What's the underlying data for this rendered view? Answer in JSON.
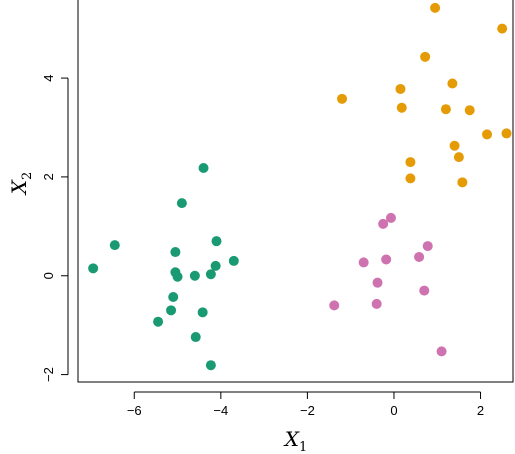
{
  "chart_data": {
    "type": "scatter",
    "title": "",
    "xlabel": {
      "base": "X",
      "subscript": "1"
    },
    "ylabel": {
      "base": "X",
      "subscript": "2"
    },
    "xlim": [
      -7.3,
      2.75
    ],
    "ylim": [
      -2.15,
      5.6
    ],
    "x_ticks": [
      -6,
      -4,
      -2,
      0,
      2
    ],
    "x_tick_labels": [
      "−6",
      "−4",
      "−2",
      "0",
      "2"
    ],
    "y_ticks": [
      -2,
      0,
      2,
      4
    ],
    "y_tick_labels": [
      "−2",
      "0",
      "2",
      "4"
    ],
    "grid": false,
    "legend": "none",
    "series": [
      {
        "color": "#1a9a72",
        "points": [
          {
            "x": -6.95,
            "y": 0.15
          },
          {
            "x": -6.45,
            "y": 0.62
          },
          {
            "x": -5.45,
            "y": -0.93
          },
          {
            "x": -5.15,
            "y": -0.7
          },
          {
            "x": -5.1,
            "y": -0.43
          },
          {
            "x": -5.05,
            "y": 0.48
          },
          {
            "x": -5.05,
            "y": 0.07
          },
          {
            "x": -5.0,
            "y": -0.02
          },
          {
            "x": -4.9,
            "y": 1.47
          },
          {
            "x": -4.6,
            "y": 0.0
          },
          {
            "x": -4.58,
            "y": -1.24
          },
          {
            "x": -4.42,
            "y": -0.74
          },
          {
            "x": -4.4,
            "y": 2.18
          },
          {
            "x": -4.23,
            "y": 0.03
          },
          {
            "x": -4.23,
            "y": -1.81
          },
          {
            "x": -4.12,
            "y": 0.2
          },
          {
            "x": -4.1,
            "y": 0.7
          },
          {
            "x": -3.7,
            "y": 0.3
          }
        ]
      },
      {
        "color": "#e59b05",
        "points": [
          {
            "x": -1.2,
            "y": 3.58
          },
          {
            "x": 0.15,
            "y": 3.78
          },
          {
            "x": 0.18,
            "y": 3.4
          },
          {
            "x": 0.38,
            "y": 2.3
          },
          {
            "x": 0.38,
            "y": 1.97
          },
          {
            "x": 0.72,
            "y": 4.43
          },
          {
            "x": 0.95,
            "y": 5.42
          },
          {
            "x": 1.2,
            "y": 3.37
          },
          {
            "x": 1.35,
            "y": 3.89
          },
          {
            "x": 1.4,
            "y": 2.63
          },
          {
            "x": 1.5,
            "y": 2.4
          },
          {
            "x": 1.58,
            "y": 1.89
          },
          {
            "x": 1.75,
            "y": 3.35
          },
          {
            "x": 2.15,
            "y": 2.86
          },
          {
            "x": 2.5,
            "y": 5.0
          },
          {
            "x": 2.6,
            "y": 2.88
          }
        ]
      },
      {
        "color": "#cf72b0",
        "points": [
          {
            "x": -1.38,
            "y": -0.6
          },
          {
            "x": -0.7,
            "y": 0.27
          },
          {
            "x": -0.4,
            "y": -0.57
          },
          {
            "x": -0.38,
            "y": -0.14
          },
          {
            "x": -0.25,
            "y": 1.05
          },
          {
            "x": -0.18,
            "y": 0.33
          },
          {
            "x": -0.07,
            "y": 1.17
          },
          {
            "x": 0.58,
            "y": 0.38
          },
          {
            "x": 0.7,
            "y": -0.3
          },
          {
            "x": 0.78,
            "y": 0.6
          },
          {
            "x": 1.1,
            "y": -1.53
          }
        ]
      }
    ]
  }
}
